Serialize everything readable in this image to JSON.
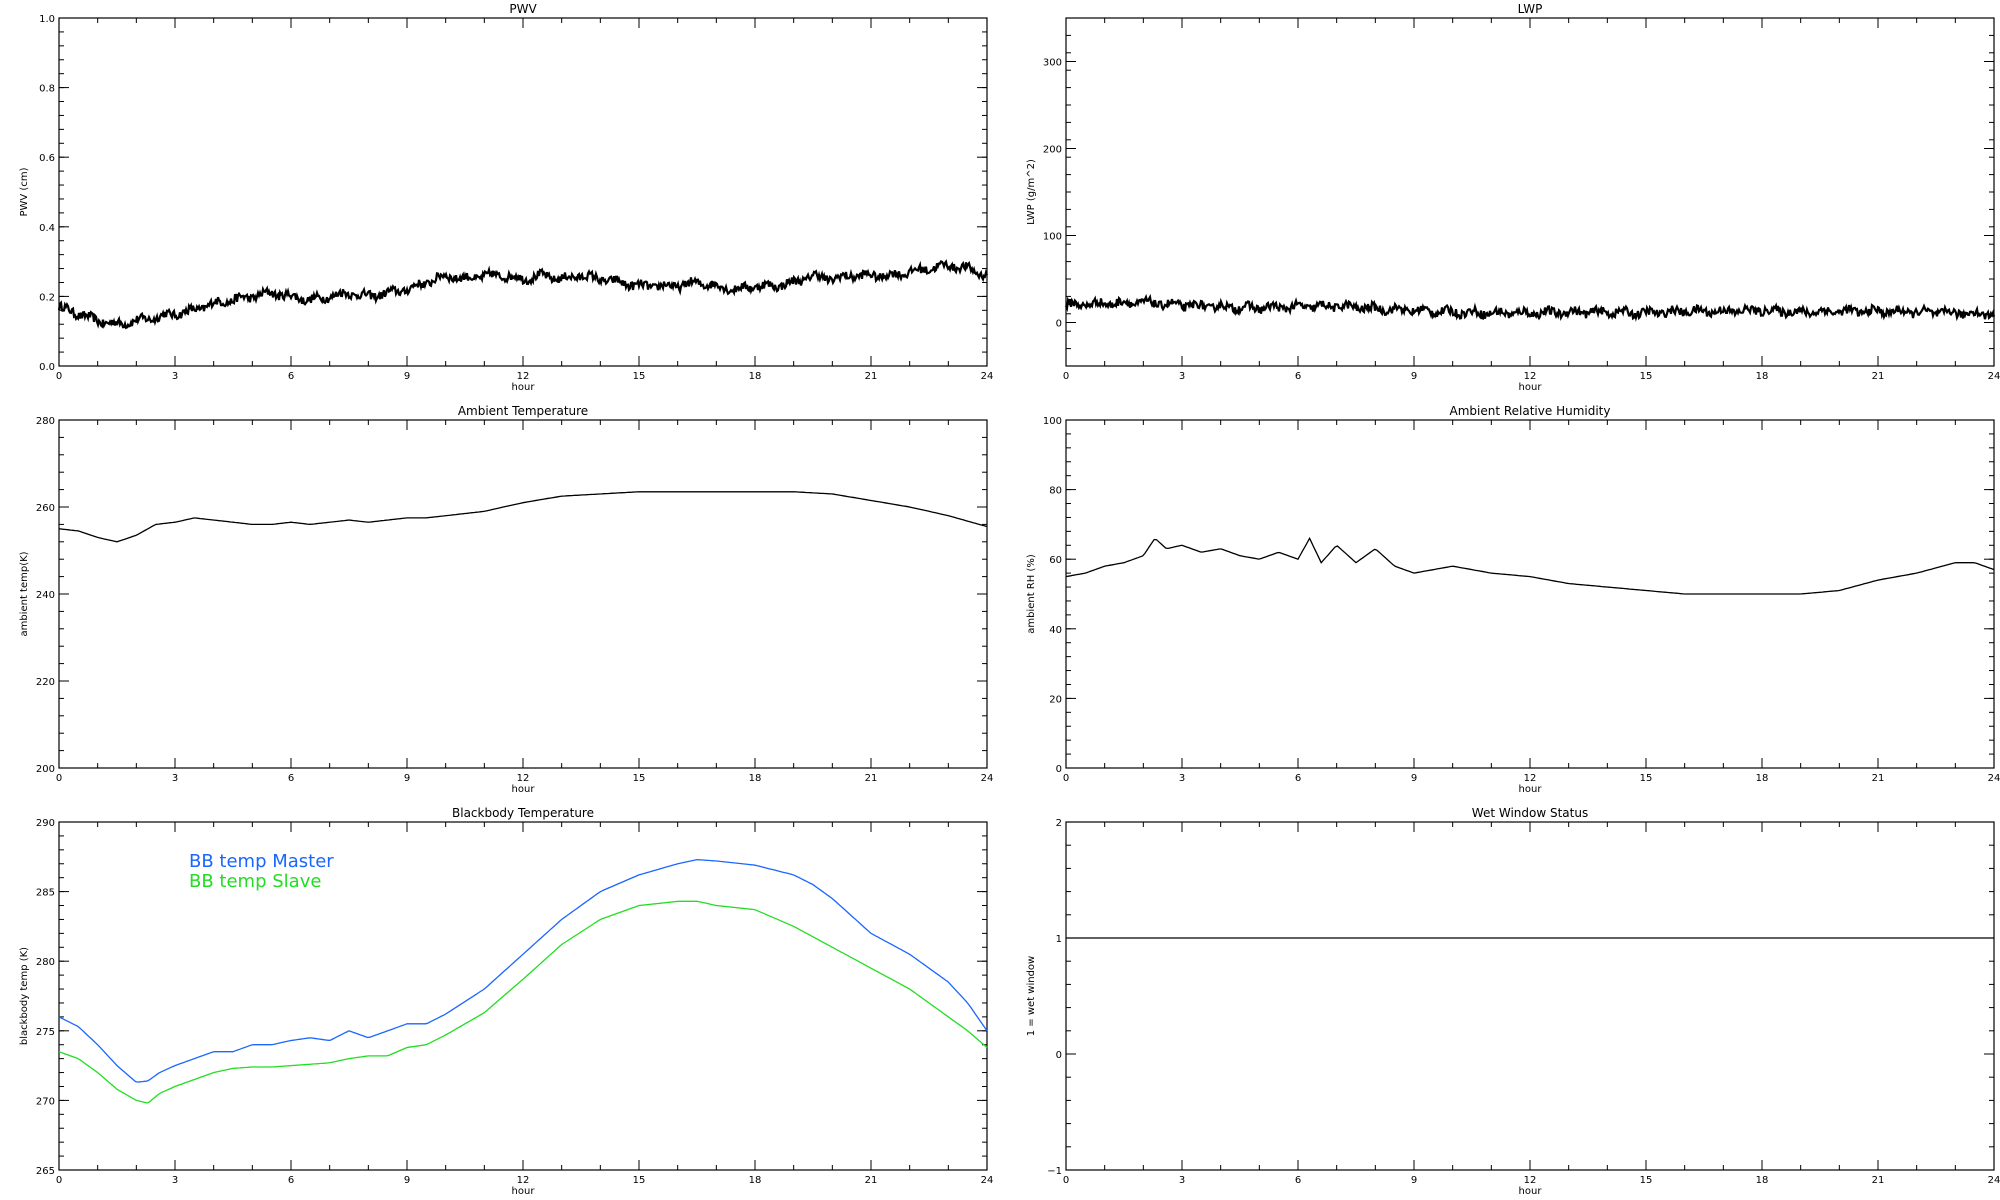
{
  "chart_data": [
    {
      "id": "pwv",
      "type": "line",
      "title": "PWV",
      "xlabel": "hour",
      "ylabel": "PWV (cm)",
      "xlim": [
        0,
        24
      ],
      "ylim": [
        0.0,
        1.0
      ],
      "xticks": [
        "0",
        "3",
        "6",
        "9",
        "12",
        "15",
        "18",
        "21",
        "24"
      ],
      "yticks": [
        "0.0",
        "0.2",
        "0.4",
        "0.6",
        "0.8",
        "1.0"
      ],
      "series": [
        {
          "color": "#000000",
          "noisy": true,
          "x": [
            0,
            0.5,
            1,
            1.5,
            2,
            2.5,
            3,
            3.5,
            4,
            4.5,
            5,
            5.5,
            6,
            6.5,
            7,
            7.5,
            8,
            8.5,
            9,
            9.5,
            10,
            10.5,
            11,
            11.5,
            12,
            12.5,
            13,
            13.5,
            14,
            14.5,
            15,
            15.5,
            16,
            16.5,
            17,
            17.5,
            18,
            18.5,
            19,
            19.5,
            20,
            20.5,
            21,
            21.5,
            22,
            22.5,
            23,
            23.5,
            24
          ],
          "y": [
            0.17,
            0.15,
            0.13,
            0.12,
            0.13,
            0.14,
            0.15,
            0.16,
            0.18,
            0.19,
            0.2,
            0.21,
            0.2,
            0.19,
            0.2,
            0.21,
            0.2,
            0.21,
            0.22,
            0.24,
            0.26,
            0.25,
            0.26,
            0.26,
            0.25,
            0.26,
            0.25,
            0.26,
            0.25,
            0.24,
            0.23,
            0.23,
            0.23,
            0.24,
            0.23,
            0.22,
            0.23,
            0.23,
            0.24,
            0.26,
            0.25,
            0.26,
            0.26,
            0.26,
            0.27,
            0.28,
            0.29,
            0.28,
            0.26
          ]
        }
      ]
    },
    {
      "id": "lwp",
      "type": "line",
      "title": "LWP",
      "xlabel": "hour",
      "ylabel": "LWP (g/m^2)",
      "xlim": [
        0,
        24
      ],
      "ylim": [
        -50,
        350
      ],
      "xticks": [
        "0",
        "3",
        "6",
        "9",
        "12",
        "15",
        "18",
        "21",
        "24"
      ],
      "yticks": [
        "0",
        "100",
        "200",
        "300"
      ],
      "ytick_values": [
        0,
        100,
        200,
        300
      ],
      "series": [
        {
          "color": "#000000",
          "noisy": true,
          "x": [
            0,
            1,
            2,
            3,
            4,
            5,
            6,
            7,
            8,
            9,
            10,
            11,
            12,
            13,
            14,
            15,
            16,
            17,
            18,
            19,
            20,
            21,
            22,
            23,
            24
          ],
          "y": [
            20,
            22,
            23,
            20,
            18,
            17,
            18,
            19,
            16,
            14,
            12,
            11,
            11,
            12,
            12,
            11,
            13,
            13,
            14,
            12,
            13,
            13,
            12,
            11,
            10
          ]
        }
      ]
    },
    {
      "id": "ambient-temp",
      "type": "line",
      "title": "Ambient Temperature",
      "xlabel": "hour",
      "ylabel": "ambient temp(K)",
      "xlim": [
        0,
        24
      ],
      "ylim": [
        200,
        280
      ],
      "xticks": [
        "0",
        "3",
        "6",
        "9",
        "12",
        "15",
        "18",
        "21",
        "24"
      ],
      "yticks": [
        "200",
        "220",
        "240",
        "260",
        "280"
      ],
      "ytick_values": [
        200,
        220,
        240,
        260,
        280
      ],
      "series": [
        {
          "color": "#000000",
          "noisy": false,
          "x": [
            0,
            0.5,
            1,
            1.5,
            2,
            2.5,
            3,
            3.5,
            4,
            4.5,
            5,
            5.5,
            6,
            6.5,
            7,
            7.5,
            8,
            8.5,
            9,
            9.5,
            10,
            11,
            12,
            13,
            14,
            15,
            16,
            17,
            18,
            19,
            20,
            21,
            22,
            23,
            24
          ],
          "y": [
            255,
            254.5,
            253,
            252,
            253.5,
            256,
            256.5,
            257.5,
            257,
            256.5,
            256,
            256,
            256.5,
            256,
            256.5,
            257,
            256.5,
            257,
            257.5,
            257.5,
            258,
            259,
            261,
            262.5,
            263,
            263.5,
            263.5,
            263.5,
            263.5,
            263.5,
            263,
            261.5,
            260,
            258,
            255.5
          ]
        }
      ]
    },
    {
      "id": "ambient-rh",
      "type": "line",
      "title": "Ambient Relative Humidity",
      "xlabel": "hour",
      "ylabel": "ambient RH (%)",
      "xlim": [
        0,
        24
      ],
      "ylim": [
        0,
        100
      ],
      "xticks": [
        "0",
        "3",
        "6",
        "9",
        "12",
        "15",
        "18",
        "21",
        "24"
      ],
      "yticks": [
        "0",
        "20",
        "40",
        "60",
        "80",
        "100"
      ],
      "ytick_values": [
        0,
        20,
        40,
        60,
        80,
        100
      ],
      "series": [
        {
          "color": "#000000",
          "noisy": false,
          "x": [
            0,
            0.5,
            1,
            1.5,
            2,
            2.3,
            2.6,
            3,
            3.5,
            4,
            4.5,
            5,
            5.5,
            6,
            6.3,
            6.6,
            7,
            7.5,
            8,
            8.5,
            9,
            9.5,
            10,
            11,
            12,
            13,
            14,
            15,
            16,
            17,
            18,
            19,
            20,
            21,
            22,
            23,
            23.5,
            24
          ],
          "y": [
            55,
            56,
            58,
            59,
            61,
            66,
            63,
            64,
            62,
            63,
            61,
            60,
            62,
            60,
            66,
            59,
            64,
            59,
            63,
            58,
            56,
            57,
            58,
            56,
            55,
            53,
            52,
            51,
            50,
            50,
            50,
            50,
            51,
            54,
            56,
            59,
            59,
            57
          ]
        }
      ]
    },
    {
      "id": "blackbody",
      "type": "line",
      "title": "Blackbody Temperature",
      "xlabel": "hour",
      "ylabel": "blackbody temp (K)",
      "xlim": [
        0,
        24
      ],
      "ylim": [
        265,
        290
      ],
      "xticks": [
        "0",
        "3",
        "6",
        "9",
        "12",
        "15",
        "18",
        "21",
        "24"
      ],
      "yticks": [
        "265",
        "270",
        "275",
        "280",
        "285",
        "290"
      ],
      "ytick_values": [
        265,
        270,
        275,
        280,
        285,
        290
      ],
      "legend": [
        "BB temp Master",
        "BB temp Slave"
      ],
      "series": [
        {
          "name": "BB temp Master",
          "color": "#1a66ff",
          "noisy": false,
          "x": [
            0,
            0.5,
            1,
            1.5,
            2,
            2.3,
            2.6,
            3,
            3.5,
            4,
            4.5,
            5,
            5.5,
            6,
            6.5,
            7,
            7.5,
            8,
            8.5,
            9,
            9.5,
            10,
            11,
            12,
            13,
            14,
            15,
            16,
            16.5,
            17,
            18,
            19,
            19.5,
            20,
            21,
            22,
            23,
            23.5,
            24
          ],
          "y": [
            276,
            275.3,
            274,
            272.5,
            271.3,
            271.4,
            272,
            272.5,
            273,
            273.5,
            273.5,
            274,
            274,
            274.3,
            274.5,
            274.3,
            275,
            274.5,
            275,
            275.5,
            275.5,
            276.2,
            278,
            280.5,
            283,
            285,
            286.2,
            287,
            287.3,
            287.2,
            286.9,
            286.2,
            285.5,
            284.5,
            282,
            280.5,
            278.5,
            277,
            275
          ]
        },
        {
          "name": "BB temp Slave",
          "color": "#22dd22",
          "noisy": false,
          "x": [
            0,
            0.5,
            1,
            1.5,
            2,
            2.3,
            2.6,
            3,
            3.5,
            4,
            4.5,
            5,
            5.5,
            6,
            6.5,
            7,
            7.5,
            8,
            8.5,
            9,
            9.5,
            10,
            11,
            12,
            13,
            14,
            15,
            16,
            16.5,
            17,
            18,
            19,
            20,
            21,
            22,
            23,
            23.5,
            24
          ],
          "y": [
            273.5,
            273,
            272,
            270.8,
            270,
            269.8,
            270.5,
            271,
            271.5,
            272,
            272.3,
            272.4,
            272.4,
            272.5,
            272.6,
            272.7,
            273,
            273.2,
            273.2,
            273.8,
            274,
            274.7,
            276.3,
            278.7,
            281.2,
            283,
            284,
            284.3,
            284.3,
            284,
            283.7,
            282.5,
            281,
            279.5,
            278,
            276,
            275,
            273.8
          ]
        }
      ]
    },
    {
      "id": "wet-window",
      "type": "line",
      "title": "Wet Window Status",
      "xlabel": "hour",
      "ylabel": "1 = wet window",
      "xlim": [
        0,
        24
      ],
      "ylim": [
        -1,
        2
      ],
      "xticks": [
        "0",
        "3",
        "6",
        "9",
        "12",
        "15",
        "18",
        "21",
        "24"
      ],
      "yticks": [
        "−1",
        "0",
        "1",
        "2"
      ],
      "ytick_values": [
        -1,
        0,
        1,
        2
      ],
      "series": [
        {
          "color": "#000000",
          "noisy": false,
          "x": [
            0,
            24
          ],
          "y": [
            1,
            1
          ]
        }
      ]
    }
  ]
}
